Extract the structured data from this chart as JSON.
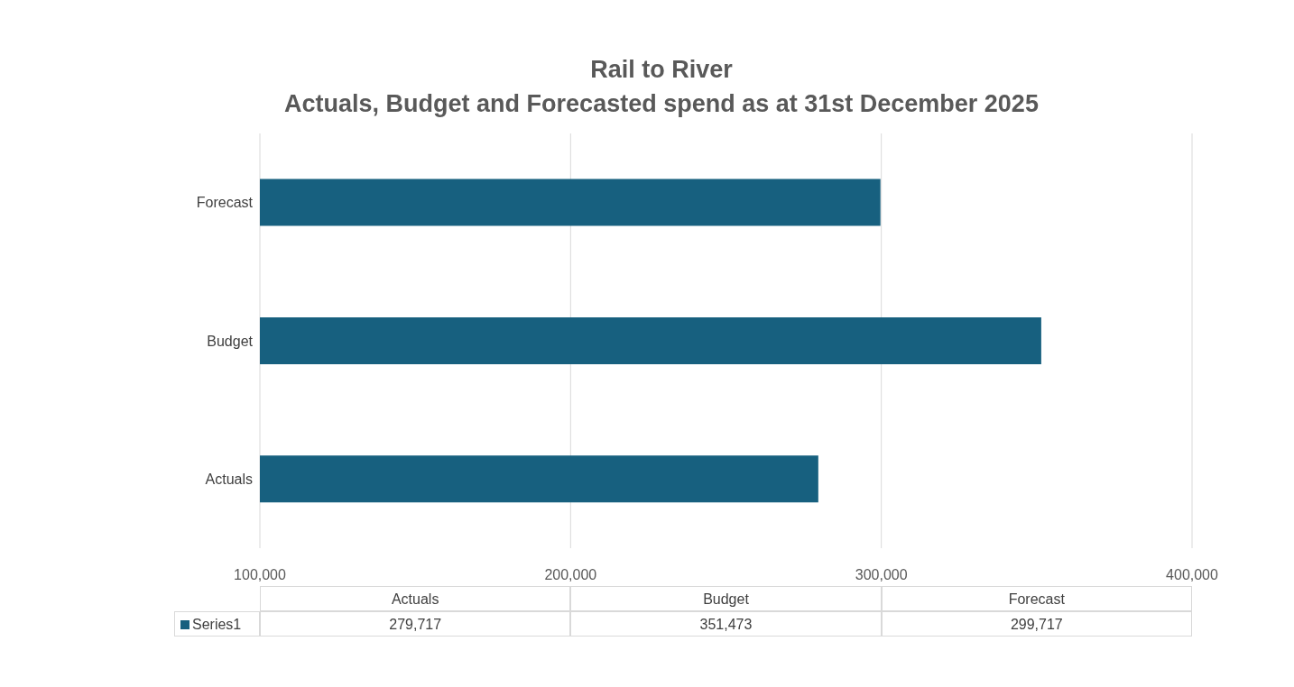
{
  "chart_data": {
    "type": "bar",
    "orientation": "horizontal",
    "title": "Rail to River",
    "subtitle": "Actuals, Budget and Forecasted spend as at 31st December 2025",
    "categories": [
      "Forecast",
      "Budget",
      "Actuals"
    ],
    "series": [
      {
        "name": "Series1",
        "color": "#17607f",
        "values": [
          299717,
          351473,
          279717
        ]
      }
    ],
    "value_labels": [
      "299,717",
      "351,473",
      "279,717"
    ],
    "xlim": [
      100000,
      400000
    ],
    "xticks": [
      {
        "value": 100000,
        "label": "100,000"
      },
      {
        "value": 200000,
        "label": "200,000"
      },
      {
        "value": 300000,
        "label": "300,000"
      },
      {
        "value": 400000,
        "label": "400,000"
      }
    ],
    "grid": "x",
    "legend": "bottom"
  }
}
